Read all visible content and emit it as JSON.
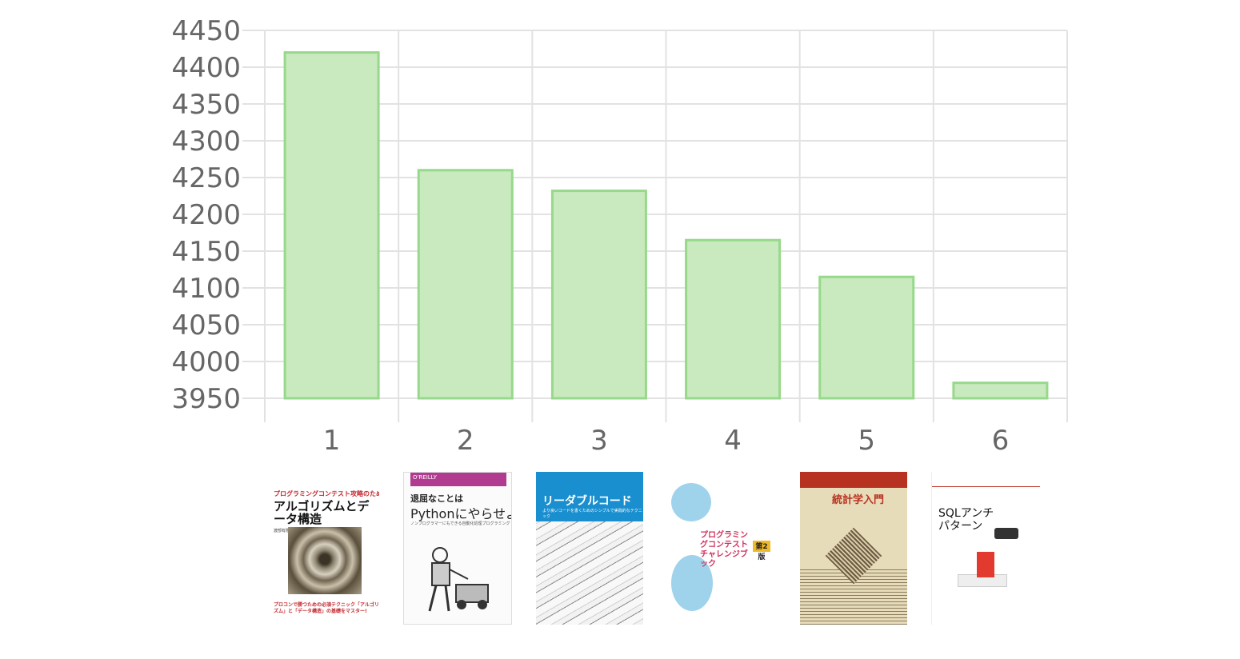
{
  "chart_data": {
    "type": "bar",
    "categories": [
      "1",
      "2",
      "3",
      "4",
      "5",
      "6"
    ],
    "values": [
      4420,
      4260,
      4232,
      4165,
      4115,
      3971
    ],
    "ylim": [
      3950,
      4450
    ],
    "yticks": [
      4450,
      4400,
      4350,
      4300,
      4250,
      4200,
      4150,
      4100,
      4050,
      4000,
      3950
    ],
    "grid": true,
    "bar_color": "#c9e9bf",
    "bar_border_color": "#97d98a"
  },
  "covers": [
    {
      "title_line": "プログラミングコンテスト攻略のための",
      "title": "アルゴリズムとデータ構造",
      "author": "渡部有隆 著",
      "tagline": "プロコンで勝つための必須テクニック「アルゴリズム」と「データ構造」の基礎をマスター!"
    },
    {
      "publisher": "O'REILLY",
      "title_top": "退屈なことは",
      "title": "Pythonにやらせよう",
      "subtitle": "ノンプログラマーにもできる自動化処理プログラミング"
    },
    {
      "title": "リーダブルコード",
      "subtitle": "より良いコードを書くためのシンプルで実践的なテクニック"
    },
    {
      "title": "プログラミングコンテストチャレンジブック",
      "edition": "第2版"
    },
    {
      "series": "基礎統計学 I",
      "title": "統計学入門"
    },
    {
      "title": "SQLアンチパターン"
    }
  ]
}
